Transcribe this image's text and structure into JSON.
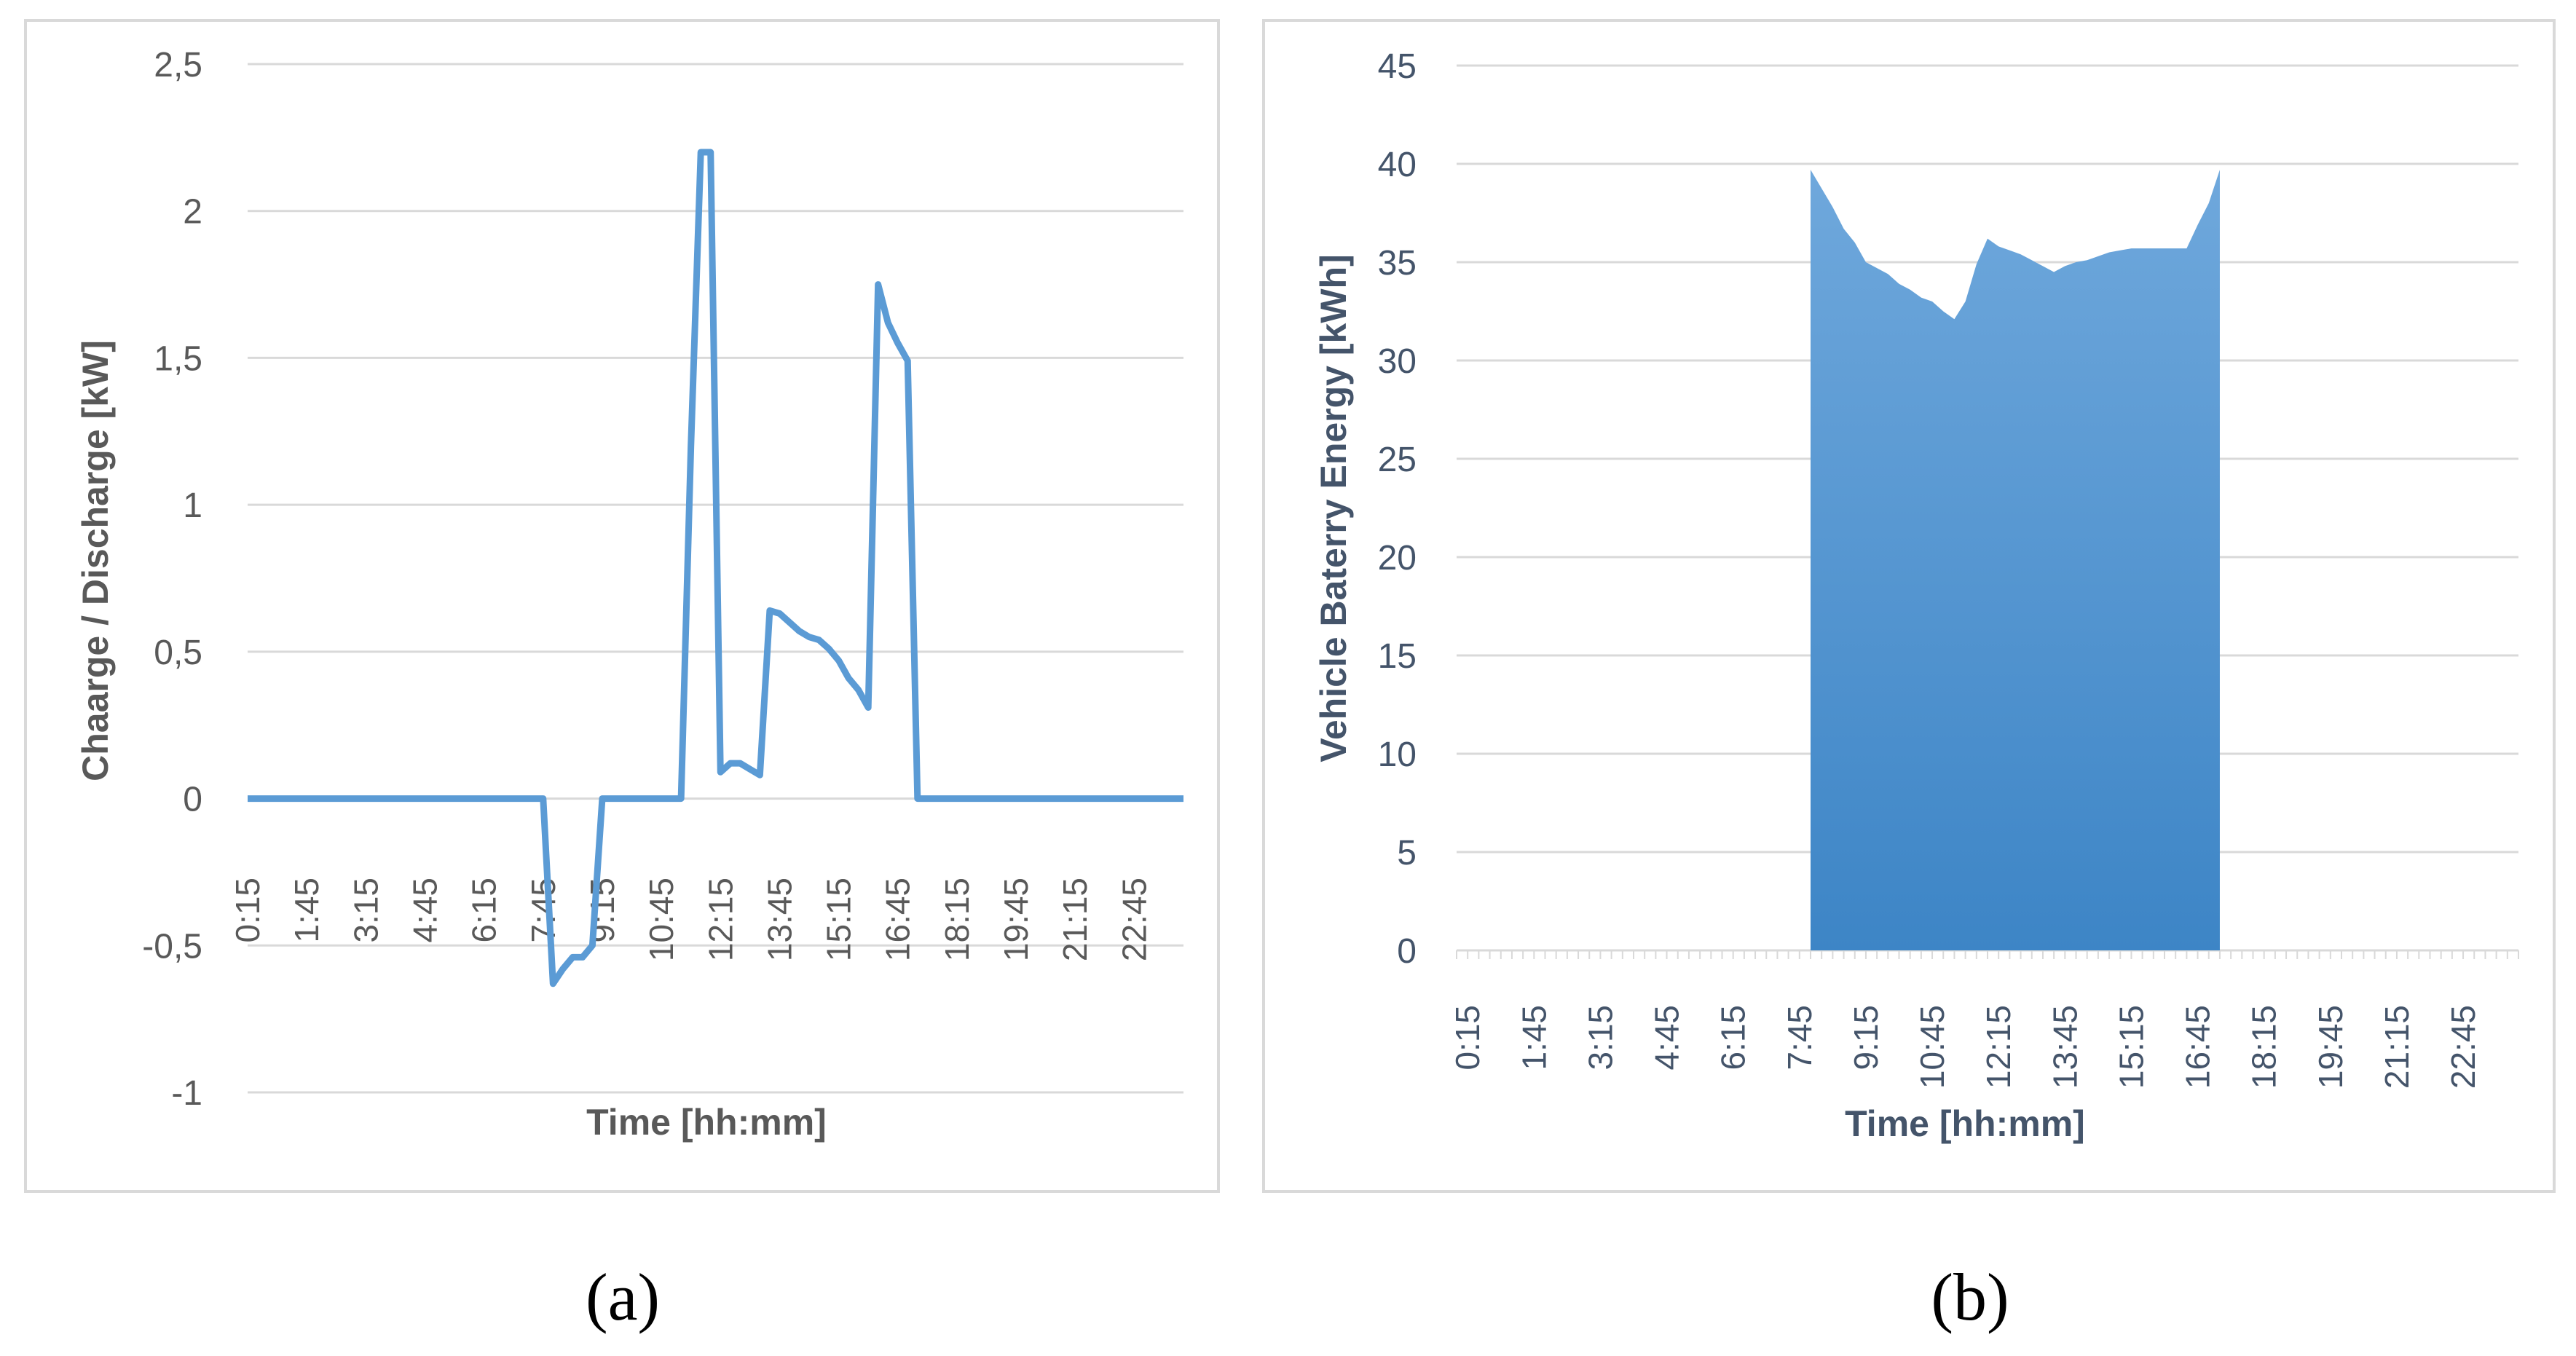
{
  "chart_data": [
    {
      "id": "a",
      "type": "line",
      "caption": "(a)",
      "xlabel": "Time [hh:mm]",
      "ylabel": "Chaarge / Discharge [kW]",
      "ylim": [
        -1,
        2.5
      ],
      "yticks": [
        "2,5",
        "2",
        "1,5",
        "1",
        "0,5",
        "0",
        "-0,5",
        "-1"
      ],
      "ytick_values": [
        2.5,
        2,
        1.5,
        1,
        0.5,
        0,
        -0.5,
        -1
      ],
      "xticks": [
        "0:15",
        "1:45",
        "3:15",
        "4:45",
        "6:15",
        "7:45",
        "9:15",
        "10:45",
        "12:15",
        "13:45",
        "15:15",
        "16:45",
        "18:15",
        "19:45",
        "21:15",
        "22:45"
      ],
      "grid": true,
      "color": "#5b9bd5",
      "series": [
        {
          "x": [
            "0:15",
            "7:45",
            "8:00",
            "8:15",
            "8:30",
            "8:45",
            "9:00",
            "9:15",
            "9:30",
            "11:15",
            "11:30",
            "11:45",
            "12:00",
            "12:15",
            "12:30",
            "12:45",
            "13:00",
            "13:15",
            "13:30",
            "13:45",
            "14:00",
            "14:15",
            "14:30",
            "14:45",
            "15:00",
            "15:15",
            "15:30",
            "15:45",
            "16:00",
            "16:15",
            "16:30",
            "16:45",
            "17:00",
            "17:15",
            "17:30",
            "24:00"
          ],
          "values": [
            0,
            0,
            -0.63,
            -0.58,
            -0.54,
            -0.54,
            -0.5,
            0,
            0,
            0,
            1.2,
            2.2,
            2.2,
            0.09,
            0.12,
            0.12,
            0.1,
            0.08,
            0.64,
            0.63,
            0.6,
            0.57,
            0.55,
            0.54,
            0.51,
            0.47,
            0.41,
            0.37,
            0.31,
            1.75,
            1.62,
            1.55,
            1.49,
            0,
            0,
            0
          ]
        }
      ]
    },
    {
      "id": "b",
      "type": "area",
      "caption": "(b)",
      "xlabel": "Time [hh:mm]",
      "ylabel": "Vehicle Baterry Energy  [kWh]",
      "ylim": [
        0,
        45
      ],
      "yticks": [
        "45",
        "40",
        "35",
        "30",
        "25",
        "20",
        "15",
        "10",
        "5",
        "0"
      ],
      "ytick_values": [
        45,
        40,
        35,
        30,
        25,
        20,
        15,
        10,
        5,
        0
      ],
      "xticks": [
        "0:15",
        "1:45",
        "3:15",
        "4:45",
        "6:15",
        "7:45",
        "9:15",
        "10:45",
        "12:15",
        "13:45",
        "15:15",
        "16:45",
        "18:15",
        "19:45",
        "21:15",
        "22:45"
      ],
      "grid": true,
      "color": "#5b9bd5",
      "series": [
        {
          "x": [
            "8:00",
            "8:30",
            "8:45",
            "9:00",
            "9:15",
            "9:30",
            "9:45",
            "10:00",
            "10:15",
            "10:30",
            "10:45",
            "11:00",
            "11:15",
            "11:30",
            "11:45",
            "12:00",
            "12:15",
            "12:30",
            "12:45",
            "13:00",
            "13:15",
            "13:30",
            "13:45",
            "14:00",
            "14:15",
            "14:30",
            "14:45",
            "15:00",
            "15:15",
            "15:30",
            "15:45",
            "16:00",
            "16:15",
            "16:30",
            "16:45",
            "17:00",
            "17:15"
          ],
          "values": [
            39.7,
            37.8,
            36.7,
            36.0,
            35.0,
            34.7,
            34.4,
            33.9,
            33.6,
            33.2,
            33.0,
            32.5,
            32.1,
            33.0,
            34.9,
            36.2,
            35.8,
            35.6,
            35.4,
            35.1,
            34.8,
            34.5,
            34.8,
            35.0,
            35.1,
            35.3,
            35.5,
            35.6,
            35.7,
            35.7,
            35.7,
            35.7,
            35.7,
            35.7,
            36.9,
            38.0,
            39.7
          ]
        }
      ]
    }
  ]
}
